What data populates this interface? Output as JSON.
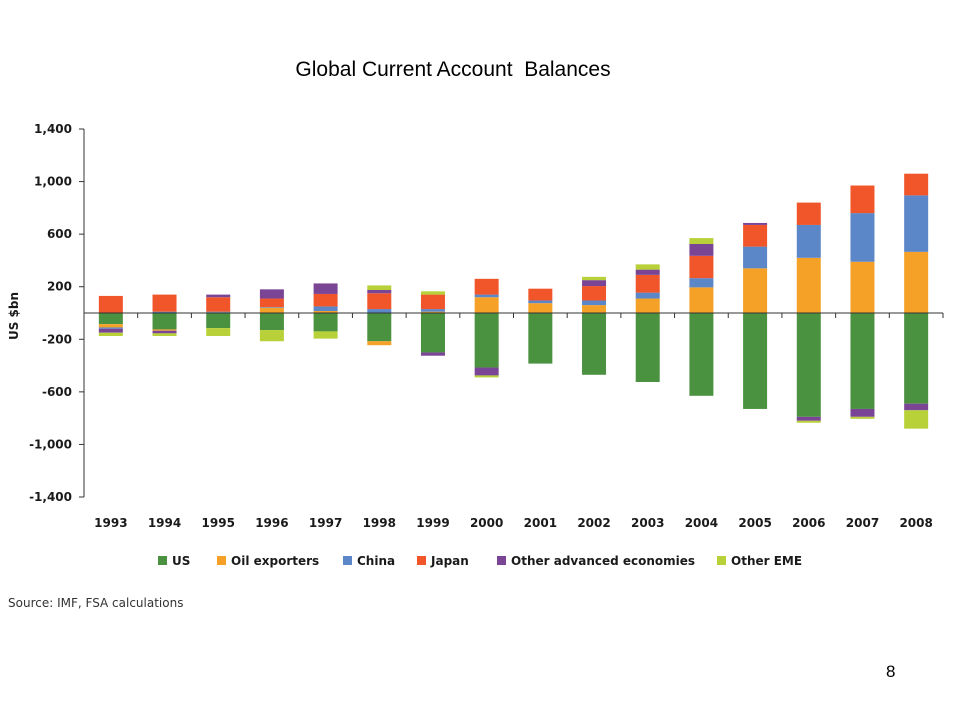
{
  "slide": {
    "title": "Global Current Account  Balances",
    "source": "Source: IMF, FSA calculations",
    "page_number": "8"
  },
  "chart_data": {
    "type": "bar",
    "stacked": true,
    "title": "",
    "xlabel": "",
    "ylabel": "US $bn",
    "ylim": [
      -1400,
      1400
    ],
    "yticks": [
      1400,
      1000,
      600,
      200,
      -200,
      -600,
      -1000,
      -1400
    ],
    "ytick_labels": [
      "1,400",
      "1,000",
      "600",
      "200",
      "-200",
      "-600",
      "-1,000",
      "-1,400"
    ],
    "categories": [
      "1993",
      "1994",
      "1995",
      "1996",
      "1997",
      "1998",
      "1999",
      "2000",
      "2001",
      "2002",
      "2003",
      "2004",
      "2005",
      "2006",
      "2007",
      "2008"
    ],
    "legend_position": "bottom",
    "series": [
      {
        "name": "US",
        "color": "#4a9140",
        "values": [
          -85,
          -125,
          -115,
          -130,
          -140,
          -215,
          -300,
          -415,
          -385,
          -470,
          -525,
          -630,
          -730,
          -790,
          -730,
          -690
        ]
      },
      {
        "name": "Oil exporters",
        "color": "#f5a128",
        "values": [
          -25,
          -10,
          5,
          40,
          15,
          -30,
          10,
          120,
          75,
          60,
          110,
          195,
          340,
          420,
          390,
          465
        ]
      },
      {
        "name": "China",
        "color": "#5b86c8",
        "values": [
          -10,
          10,
          5,
          5,
          35,
          30,
          20,
          20,
          20,
          35,
          45,
          70,
          165,
          250,
          370,
          430
        ]
      },
      {
        "name": "Japan",
        "color": "#f0562a",
        "values": [
          130,
          130,
          110,
          65,
          95,
          120,
          110,
          120,
          90,
          110,
          135,
          170,
          165,
          170,
          210,
          165
        ]
      },
      {
        "name": "Other advanced economies",
        "color": "#7b4596",
        "values": [
          -30,
          -20,
          20,
          70,
          80,
          25,
          -25,
          -60,
          0,
          45,
          40,
          90,
          15,
          -30,
          -60,
          -50
        ]
      },
      {
        "name": "Other EME",
        "color": "#b8d138",
        "values": [
          -25,
          -20,
          -60,
          -85,
          -55,
          35,
          25,
          -15,
          0,
          25,
          40,
          45,
          0,
          -15,
          -15,
          -140
        ]
      }
    ]
  }
}
